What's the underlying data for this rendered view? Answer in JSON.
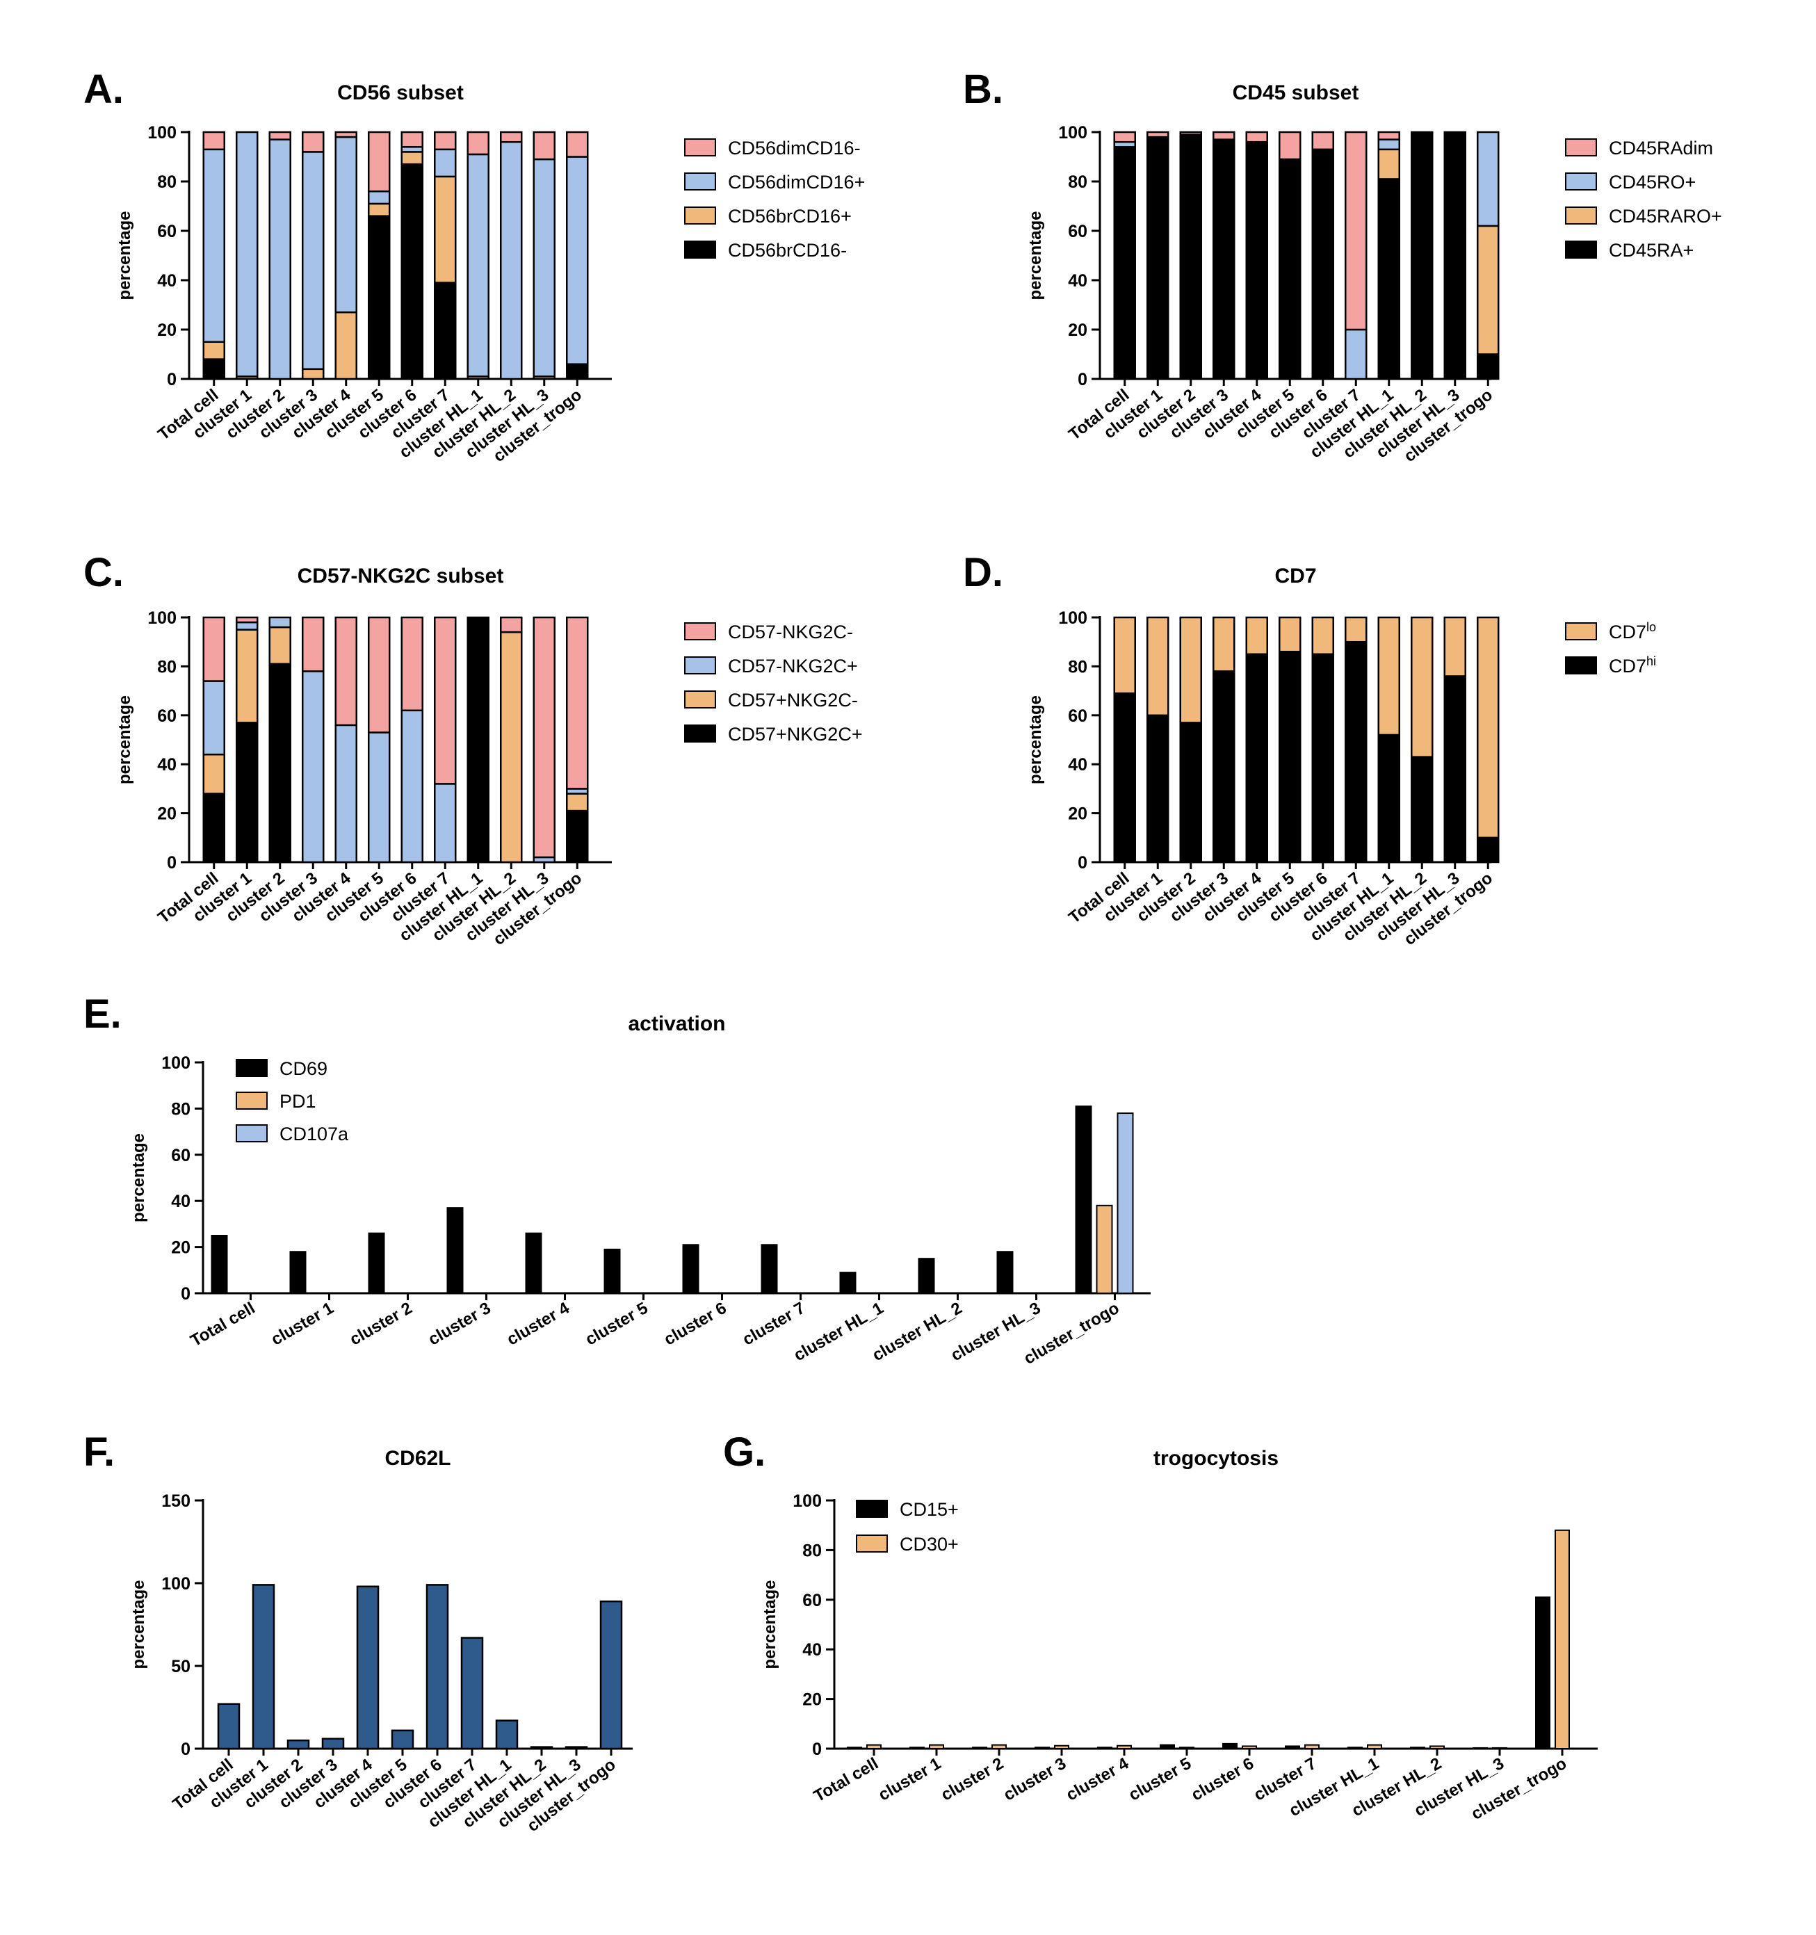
{
  "colors": {
    "pink": "#f4a3a3",
    "blue": "#a6c2e8",
    "orange": "#f0b97b",
    "black": "#000000",
    "navy": "#2e5a8c"
  },
  "chart_data": [
    {
      "letter": "A.",
      "type": "bar",
      "stacked": true,
      "title": "CD56 subset",
      "ylabel": "percentage",
      "ylim": [
        0,
        100
      ],
      "yticks": [
        "0",
        "20",
        "40",
        "60",
        "80",
        "100"
      ],
      "legend_position": "right",
      "categories": [
        "Total cell",
        "cluster 1",
        "cluster 2",
        "cluster 3",
        "cluster 4",
        "cluster 5",
        "cluster 6",
        "cluster 7",
        "cluster HL_1",
        "cluster HL_2",
        "cluster HL_3",
        "cluster_trogo"
      ],
      "series": [
        {
          "name": "CD56brCD16-",
          "color": "black",
          "values": [
            8,
            0,
            0,
            0,
            0,
            66,
            87,
            39,
            0,
            0,
            0,
            6
          ]
        },
        {
          "name": "CD56brCD16+",
          "color": "orange",
          "values": [
            7,
            1,
            0,
            4,
            27,
            5,
            5,
            43,
            1,
            0,
            1,
            0
          ]
        },
        {
          "name": "CD56dimCD16+",
          "color": "blue",
          "values": [
            78,
            99,
            97,
            88,
            71,
            5,
            2,
            11,
            90,
            96,
            88,
            84
          ]
        },
        {
          "name": "CD56dimCD16-",
          "color": "pink",
          "values": [
            7,
            0,
            3,
            8,
            2,
            24,
            6,
            7,
            9,
            4,
            11,
            10
          ]
        }
      ]
    },
    {
      "letter": "B.",
      "type": "bar",
      "stacked": true,
      "title": "CD45 subset",
      "ylabel": "percentage",
      "ylim": [
        0,
        100
      ],
      "yticks": [
        "0",
        "20",
        "40",
        "60",
        "80",
        "100"
      ],
      "legend_position": "right",
      "categories": [
        "Total cell",
        "cluster 1",
        "cluster 2",
        "cluster 3",
        "cluster 4",
        "cluster 5",
        "cluster 6",
        "cluster 7",
        "cluster HL_1",
        "cluster HL_2",
        "cluster HL_3",
        "cluster_trogo"
      ],
      "series": [
        {
          "name": "CD45RA+",
          "color": "black",
          "values": [
            94,
            98,
            99,
            97,
            96,
            89,
            93,
            0,
            81,
            100,
            100,
            10
          ]
        },
        {
          "name": "CD45RARO+",
          "color": "orange",
          "values": [
            0,
            0,
            0,
            0,
            0,
            0,
            0,
            0,
            12,
            0,
            0,
            52
          ]
        },
        {
          "name": "CD45RO+",
          "color": "blue",
          "values": [
            2,
            0,
            0,
            0,
            0,
            0,
            0,
            20,
            4,
            0,
            0,
            38
          ]
        },
        {
          "name": "CD45RAdim",
          "color": "pink",
          "values": [
            4,
            2,
            1,
            3,
            4,
            11,
            7,
            80,
            3,
            0,
            0,
            0
          ]
        }
      ]
    },
    {
      "letter": "C.",
      "type": "bar",
      "stacked": true,
      "title": "CD57-NKG2C subset",
      "ylabel": "percentage",
      "ylim": [
        0,
        100
      ],
      "yticks": [
        "0",
        "20",
        "40",
        "60",
        "80",
        "100"
      ],
      "legend_position": "right",
      "categories": [
        "Total cell",
        "cluster 1",
        "cluster 2",
        "cluster 3",
        "cluster 4",
        "cluster 5",
        "cluster 6",
        "cluster 7",
        "cluster HL_1",
        "cluster HL_2",
        "cluster HL_3",
        "cluster_trogo"
      ],
      "series": [
        {
          "name": "CD57+NKG2C+",
          "color": "black",
          "values": [
            28,
            57,
            81,
            0,
            0,
            0,
            0,
            0,
            100,
            0,
            0,
            21
          ]
        },
        {
          "name": "CD57+NKG2C-",
          "color": "orange",
          "values": [
            16,
            38,
            15,
            0,
            0,
            0,
            0,
            0,
            0,
            94,
            0,
            7
          ]
        },
        {
          "name": "CD57-NKG2C+",
          "color": "blue",
          "values": [
            30,
            3,
            4,
            78,
            56,
            53,
            62,
            32,
            0,
            0,
            2,
            2
          ]
        },
        {
          "name": "CD57-NKG2C-",
          "color": "pink",
          "values": [
            26,
            2,
            0,
            22,
            44,
            47,
            38,
            68,
            0,
            6,
            98,
            70
          ]
        }
      ]
    },
    {
      "letter": "D.",
      "type": "bar",
      "stacked": true,
      "title": "CD7",
      "ylabel": "percentage",
      "ylim": [
        0,
        100
      ],
      "yticks": [
        "0",
        "20",
        "40",
        "60",
        "80",
        "100"
      ],
      "legend_position": "right",
      "categories": [
        "Total cell",
        "cluster 1",
        "cluster 2",
        "cluster 3",
        "cluster 4",
        "cluster 5",
        "cluster 6",
        "cluster 7",
        "cluster HL_1",
        "cluster HL_2",
        "cluster HL_3",
        "cluster_trogo"
      ],
      "series": [
        {
          "name": "CD7",
          "sup": "hi",
          "color": "black",
          "values": [
            69,
            60,
            57,
            78,
            85,
            86,
            85,
            90,
            52,
            43,
            76,
            10
          ]
        },
        {
          "name": "CD7",
          "sup": "lo",
          "color": "orange",
          "values": [
            31,
            40,
            43,
            22,
            15,
            14,
            15,
            10,
            48,
            57,
            24,
            90
          ]
        }
      ]
    },
    {
      "letter": "E.",
      "type": "bar",
      "stacked": false,
      "title": "activation",
      "ylabel": "percentage",
      "ylim": [
        0,
        100
      ],
      "yticks": [
        "0",
        "20",
        "40",
        "60",
        "80",
        "100"
      ],
      "legend_position": "top-left",
      "categories": [
        "Total cell",
        "cluster 1",
        "cluster 2",
        "cluster 3",
        "cluster 4",
        "cluster 5",
        "cluster 6",
        "cluster 7",
        "cluster HL_1",
        "cluster HL_2",
        "cluster HL_3",
        "cluster_trogo"
      ],
      "series": [
        {
          "name": "CD69",
          "color": "black",
          "values": [
            25,
            18,
            26,
            37,
            26,
            19,
            21,
            21,
            9,
            15,
            18,
            81
          ]
        },
        {
          "name": "PD1",
          "color": "orange",
          "values": [
            0,
            0,
            0,
            0,
            0,
            0,
            0,
            0,
            0,
            0,
            0,
            38
          ]
        },
        {
          "name": "CD107a",
          "color": "blue",
          "values": [
            0,
            0,
            0,
            0,
            0,
            0,
            0,
            0,
            0,
            0,
            0,
            78
          ]
        }
      ]
    },
    {
      "letter": "F.",
      "type": "bar",
      "stacked": false,
      "title": "CD62L",
      "ylabel": "percentage",
      "ylim": [
        0,
        150
      ],
      "yticks": [
        "0",
        "50",
        "100",
        "150"
      ],
      "legend_position": "none",
      "categories": [
        "Total cell",
        "cluster 1",
        "cluster 2",
        "cluster 3",
        "cluster 4",
        "cluster 5",
        "cluster 6",
        "cluster 7",
        "cluster HL_1",
        "cluster HL_2",
        "cluster HL_3",
        "cluster_trogo"
      ],
      "series": [
        {
          "name": "CD62L",
          "color": "navy",
          "values": [
            27,
            99,
            5,
            6,
            98,
            11,
            99,
            67,
            17,
            1,
            1,
            89
          ]
        }
      ]
    },
    {
      "letter": "G.",
      "type": "bar",
      "stacked": false,
      "title": "trogocytosis",
      "ylabel": "percentage",
      "ylim": [
        0,
        100
      ],
      "yticks": [
        "0",
        "20",
        "40",
        "60",
        "80",
        "100"
      ],
      "legend_position": "top-left",
      "categories": [
        "Total cell",
        "cluster 1",
        "cluster 2",
        "cluster 3",
        "cluster 4",
        "cluster 5",
        "cluster 6",
        "cluster 7",
        "cluster HL_1",
        "cluster HL_2",
        "cluster HL_3",
        "cluster_trogo"
      ],
      "series": [
        {
          "name": "CD15+",
          "color": "black",
          "values": [
            0.5,
            0.5,
            0.5,
            0.5,
            0.5,
            1.5,
            2,
            1,
            0.5,
            0.5,
            0.3,
            61
          ]
        },
        {
          "name": "CD30+",
          "color": "orange",
          "values": [
            1.5,
            1.5,
            1.5,
            1.2,
            1.2,
            0.5,
            1,
            1.5,
            1.5,
            1,
            0.3,
            88
          ]
        }
      ]
    }
  ]
}
